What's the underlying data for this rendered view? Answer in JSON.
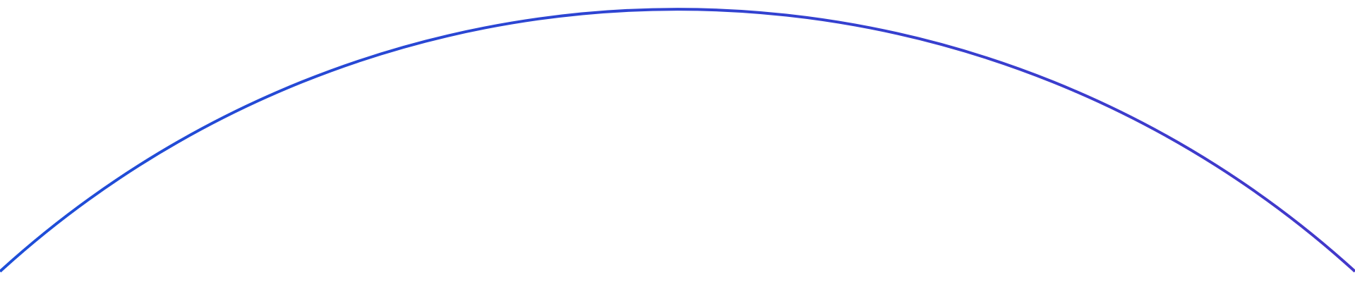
{
  "arc": {
    "color_start": "#1d4ed8",
    "color_end": "#4338ca"
  }
}
